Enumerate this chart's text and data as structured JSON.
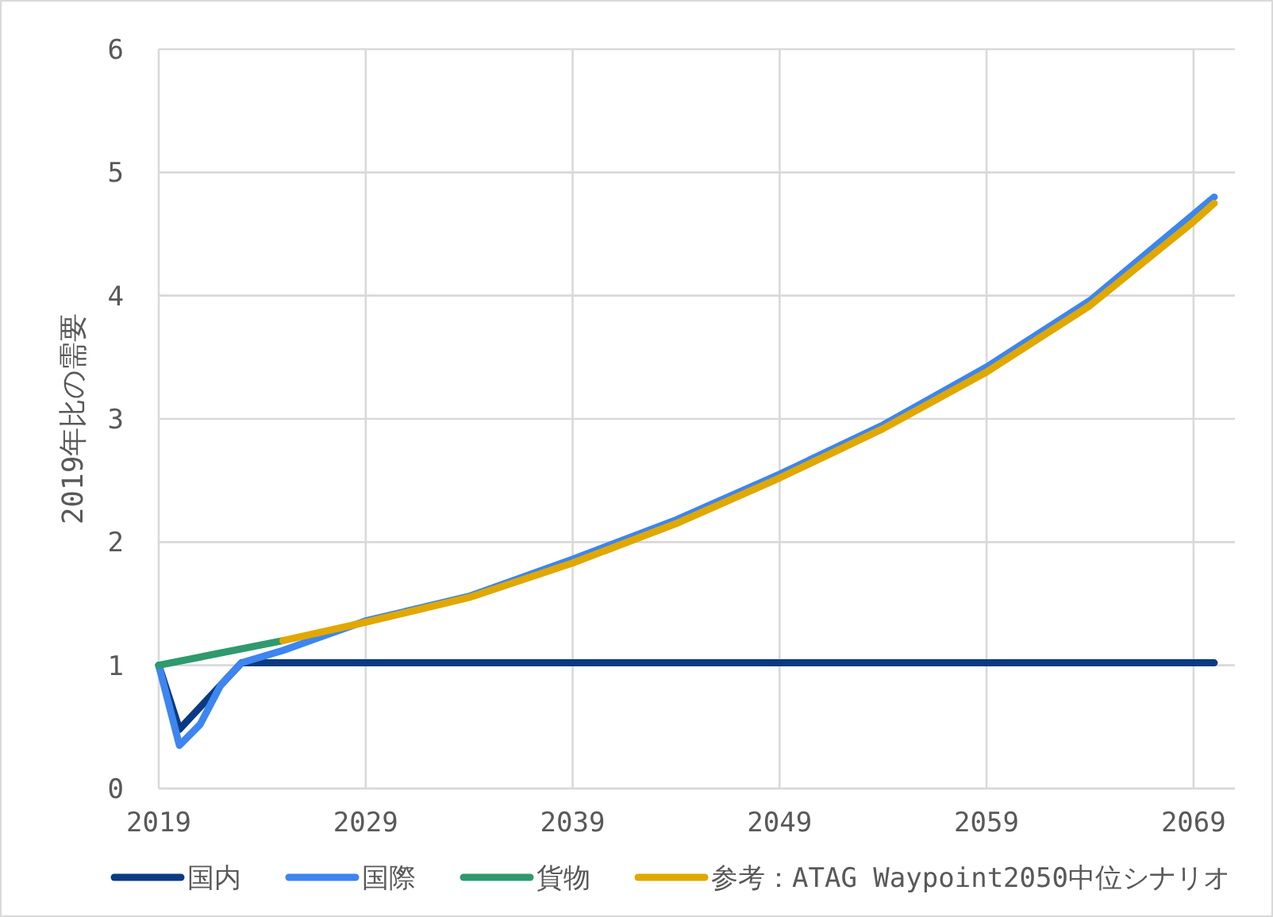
{
  "chart_data": {
    "type": "line",
    "ylabel": "2019年比の需要",
    "xlim": [
      2019,
      2071
    ],
    "xticks": [
      2019,
      2029,
      2039,
      2049,
      2059,
      2069
    ],
    "ylim": [
      0,
      6
    ],
    "yticks": [
      0,
      1,
      2,
      3,
      4,
      5,
      6
    ],
    "grid": true,
    "legend": "bottom",
    "marker": "none",
    "line_style": "solid",
    "series": [
      {
        "name": "国内",
        "color": "#0b3a82",
        "x": [
          2019,
          2020,
          2021,
          2022,
          2023,
          2030,
          2040,
          2050,
          2060,
          2070
        ],
        "values": [
          1,
          0.48,
          0.66,
          0.84,
          1.02,
          1.02,
          1.02,
          1.02,
          1.02,
          1.02
        ]
      },
      {
        "name": "国際",
        "color": "#3d85f0",
        "x": [
          2019,
          2020,
          2021,
          2022,
          2023,
          2025,
          2027,
          2029,
          2034,
          2039,
          2044,
          2049,
          2054,
          2059,
          2064,
          2069,
          2070
        ],
        "values": [
          1,
          0.35,
          0.52,
          0.84,
          1.02,
          1.12,
          1.24,
          1.36,
          1.56,
          1.86,
          2.18,
          2.55,
          2.95,
          3.42,
          3.96,
          4.66,
          4.8
        ]
      },
      {
        "name": "貨物",
        "color": "#2e9a6e",
        "x": [
          2019,
          2025
        ],
        "values": [
          1,
          1.2
        ]
      },
      {
        "name": "参考：ATAG Waypoint2050中位シナリオ",
        "color": "#e0a800",
        "x": [
          2025,
          2029,
          2034,
          2039,
          2044,
          2049,
          2054,
          2059,
          2064,
          2069,
          2070
        ],
        "values": [
          1.2,
          1.35,
          1.55,
          1.83,
          2.15,
          2.52,
          2.92,
          3.38,
          3.92,
          4.6,
          4.75
        ]
      }
    ]
  }
}
